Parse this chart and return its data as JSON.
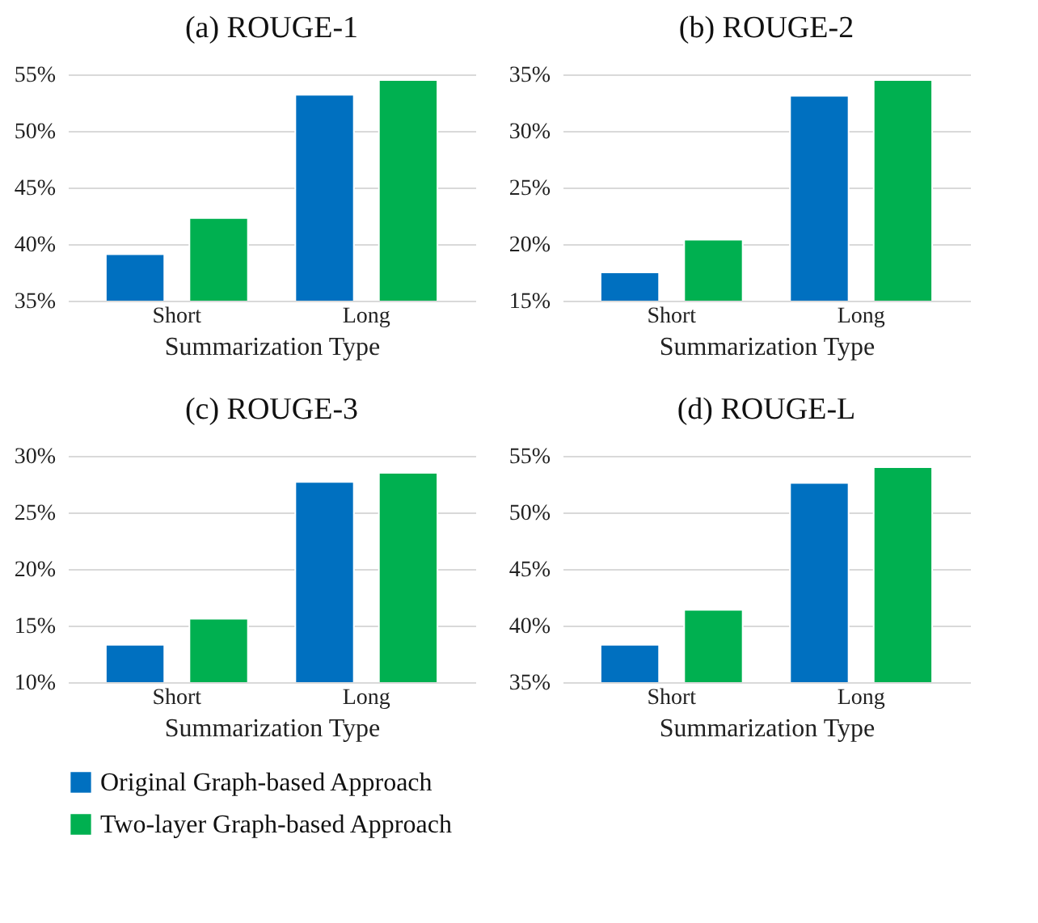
{
  "chart_data": [
    {
      "type": "bar",
      "title": "(a) ROUGE-1",
      "xlabel": "Summarization Type",
      "categories": [
        "Short",
        "Long"
      ],
      "ylim": [
        35,
        55
      ],
      "yticks": [
        {
          "value": 35,
          "label": "35%"
        },
        {
          "value": 40,
          "label": "40%"
        },
        {
          "value": 45,
          "label": "45%"
        },
        {
          "value": 50,
          "label": "50%"
        },
        {
          "value": 55,
          "label": "55%"
        }
      ],
      "grid": "y",
      "legend": "bottom",
      "series": [
        {
          "name": "Original Graph-based Approach",
          "color": "#0070c0",
          "values": [
            39.1,
            53.2
          ]
        },
        {
          "name": "Two-layer Graph-based Approach",
          "color": "#00b050",
          "values": [
            42.3,
            54.5
          ]
        }
      ]
    },
    {
      "type": "bar",
      "title": "(b) ROUGE-2",
      "xlabel": "Summarization Type",
      "categories": [
        "Short",
        "Long"
      ],
      "ylim": [
        15,
        35
      ],
      "yticks": [
        {
          "value": 15,
          "label": "15%"
        },
        {
          "value": 20,
          "label": "20%"
        },
        {
          "value": 25,
          "label": "25%"
        },
        {
          "value": 30,
          "label": "30%"
        },
        {
          "value": 35,
          "label": "35%"
        }
      ],
      "grid": "y",
      "legend": "bottom",
      "series": [
        {
          "name": "Original Graph-based Approach",
          "color": "#0070c0",
          "values": [
            17.5,
            33.1
          ]
        },
        {
          "name": "Two-layer Graph-based Approach",
          "color": "#00b050",
          "values": [
            20.4,
            34.5
          ]
        }
      ]
    },
    {
      "type": "bar",
      "title": "(c) ROUGE-3",
      "xlabel": "Summarization Type",
      "categories": [
        "Short",
        "Long"
      ],
      "ylim": [
        10,
        30
      ],
      "yticks": [
        {
          "value": 10,
          "label": "10%"
        },
        {
          "value": 15,
          "label": "15%"
        },
        {
          "value": 20,
          "label": "20%"
        },
        {
          "value": 25,
          "label": "25%"
        },
        {
          "value": 30,
          "label": "30%"
        }
      ],
      "grid": "y",
      "legend": "bottom",
      "series": [
        {
          "name": "Original Graph-based Approach",
          "color": "#0070c0",
          "values": [
            13.3,
            27.7
          ]
        },
        {
          "name": "Two-layer Graph-based Approach",
          "color": "#00b050",
          "values": [
            15.6,
            28.5
          ]
        }
      ]
    },
    {
      "type": "bar",
      "title": "(d) ROUGE-L",
      "xlabel": "Summarization Type",
      "categories": [
        "Short",
        "Long"
      ],
      "ylim": [
        35,
        55
      ],
      "yticks": [
        {
          "value": 35,
          "label": "35%"
        },
        {
          "value": 40,
          "label": "40%"
        },
        {
          "value": 45,
          "label": "45%"
        },
        {
          "value": 50,
          "label": "50%"
        },
        {
          "value": 55,
          "label": "55%"
        }
      ],
      "grid": "y",
      "legend": "bottom",
      "series": [
        {
          "name": "Original Graph-based Approach",
          "color": "#0070c0",
          "values": [
            38.3,
            52.6
          ]
        },
        {
          "name": "Two-layer Graph-based Approach",
          "color": "#00b050",
          "values": [
            41.4,
            54.0
          ]
        }
      ]
    }
  ]
}
